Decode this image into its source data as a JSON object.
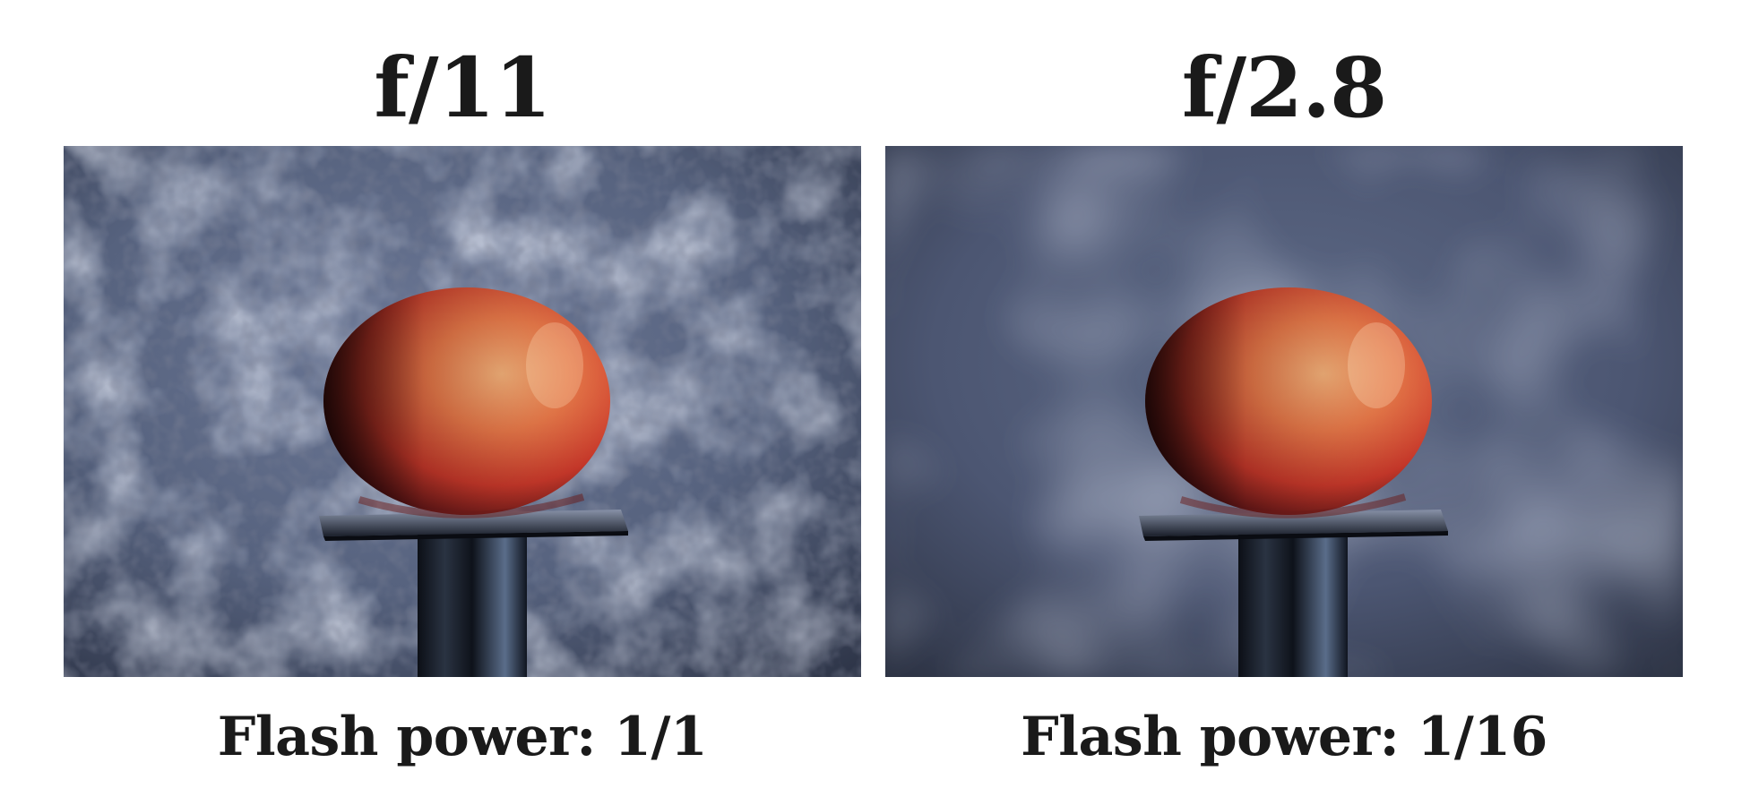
{
  "panels": [
    {
      "aperture": "f/11",
      "caption": "Flash power: 1/1",
      "background_focus": "sharp",
      "image": "photo of a red apple on a black stand in front of a mottled blue-grey backdrop"
    },
    {
      "aperture": "f/2.8",
      "caption": "Flash power: 1/16",
      "background_focus": "blurred",
      "image": "photo of a red apple on a black stand in front of a blurred blue-grey backdrop"
    }
  ],
  "colors": {
    "text": "#1a1a1a",
    "backdrop": "#56627e",
    "apple_red": "#d8462e",
    "apple_orange": "#f0a064",
    "stand": "#141a24"
  }
}
